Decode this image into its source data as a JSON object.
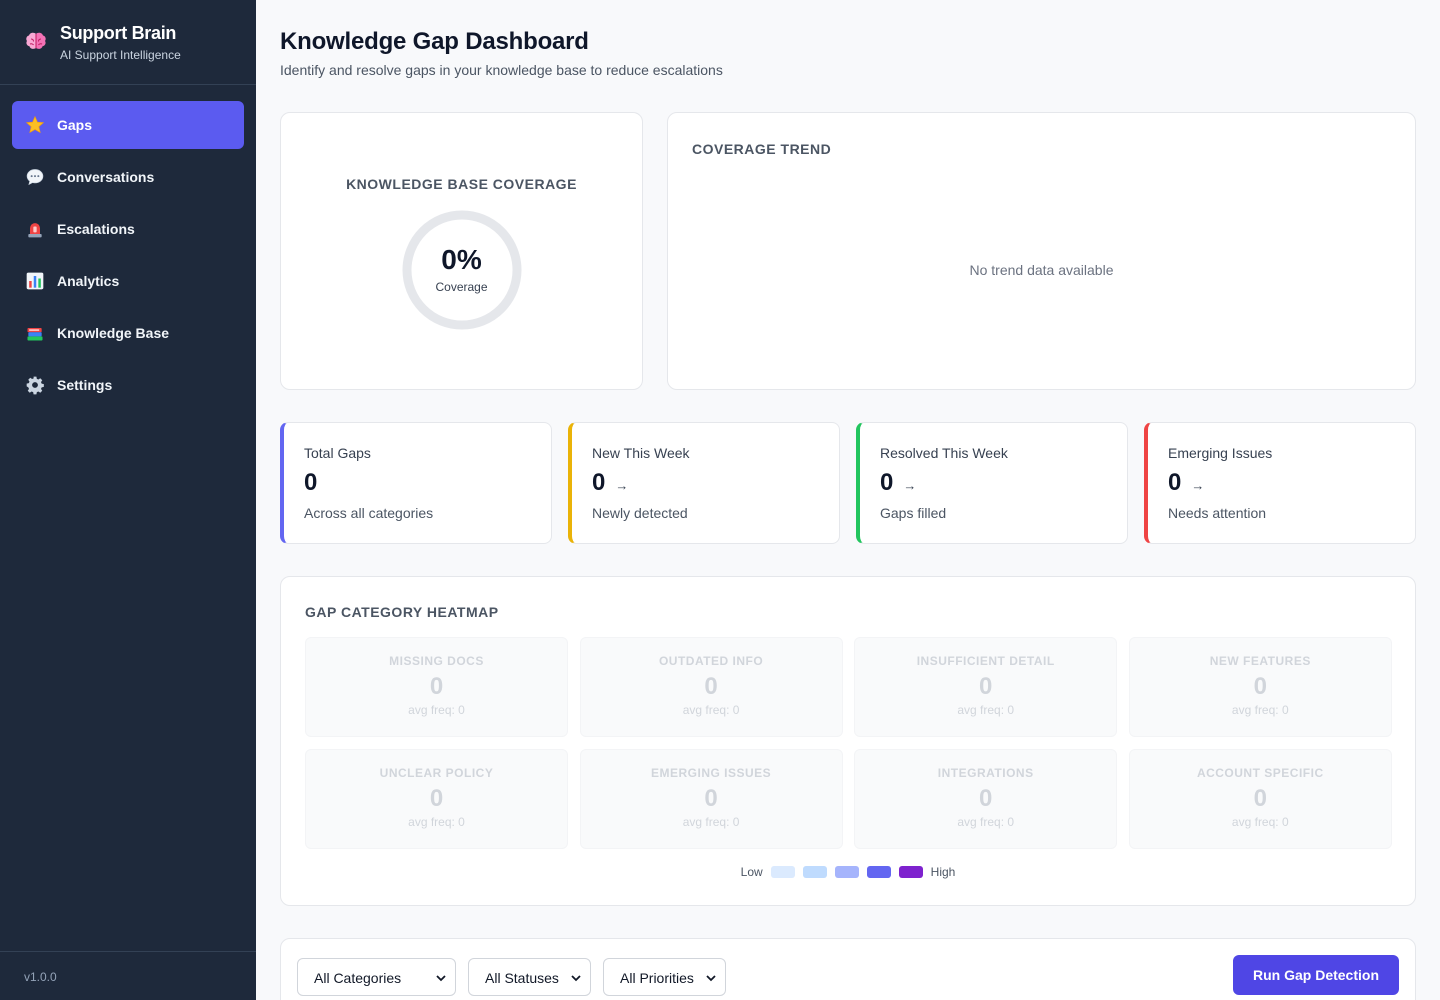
{
  "app": {
    "title": "Support Brain",
    "subtitle": "AI Support Intelligence",
    "version": "v1.0.0",
    "brand_icon": "brain-icon"
  },
  "sidebar": {
    "items": [
      {
        "label": "Gaps",
        "icon": "star-icon",
        "active": true
      },
      {
        "label": "Conversations",
        "icon": "speech-bubble-icon",
        "active": false
      },
      {
        "label": "Escalations",
        "icon": "siren-icon",
        "active": false
      },
      {
        "label": "Analytics",
        "icon": "bar-chart-icon",
        "active": false
      },
      {
        "label": "Knowledge Base",
        "icon": "books-icon",
        "active": false
      },
      {
        "label": "Settings",
        "icon": "gear-icon",
        "active": false
      }
    ]
  },
  "page": {
    "title": "Knowledge Gap Dashboard",
    "subtitle": "Identify and resolve gaps in your knowledge base to reduce escalations"
  },
  "coverage": {
    "label": "Knowledge Base Coverage",
    "value": "0%",
    "caption": "Coverage",
    "fraction": 0
  },
  "trend": {
    "label": "Coverage Trend",
    "empty_message": "No trend data available"
  },
  "stats": [
    {
      "label": "Total Gaps",
      "value": "0",
      "caption": "Across all categories",
      "arrow": "",
      "accent": "#6366f1"
    },
    {
      "label": "New This Week",
      "value": "0",
      "caption": "Newly detected",
      "arrow": "→",
      "accent": "#eab308"
    },
    {
      "label": "Resolved This Week",
      "value": "0",
      "caption": "Gaps filled",
      "arrow": "→",
      "accent": "#22c55e"
    },
    {
      "label": "Emerging Issues",
      "value": "0",
      "caption": "Needs attention",
      "arrow": "→",
      "accent": "#ef4444"
    }
  ],
  "heatmap": {
    "label": "Gap Category Heatmap",
    "cells": [
      {
        "name": "Missing Docs",
        "count": "0",
        "freq": "avg freq: 0"
      },
      {
        "name": "Outdated Info",
        "count": "0",
        "freq": "avg freq: 0"
      },
      {
        "name": "Insufficient Detail",
        "count": "0",
        "freq": "avg freq: 0"
      },
      {
        "name": "New Features",
        "count": "0",
        "freq": "avg freq: 0"
      },
      {
        "name": "Unclear Policy",
        "count": "0",
        "freq": "avg freq: 0"
      },
      {
        "name": "Emerging Issues",
        "count": "0",
        "freq": "avg freq: 0"
      },
      {
        "name": "Integrations",
        "count": "0",
        "freq": "avg freq: 0"
      },
      {
        "name": "Account Specific",
        "count": "0",
        "freq": "avg freq: 0"
      }
    ],
    "legend": {
      "low": "Low",
      "high": "High",
      "colors": [
        "#dbeafe",
        "#bfdbfe",
        "#a5b4fc",
        "#6366f1",
        "#7e22ce"
      ]
    }
  },
  "filters": {
    "category": "All Categories",
    "status": "All Statuses",
    "priority": "All Priorities",
    "run_button": "Run Gap Detection"
  }
}
